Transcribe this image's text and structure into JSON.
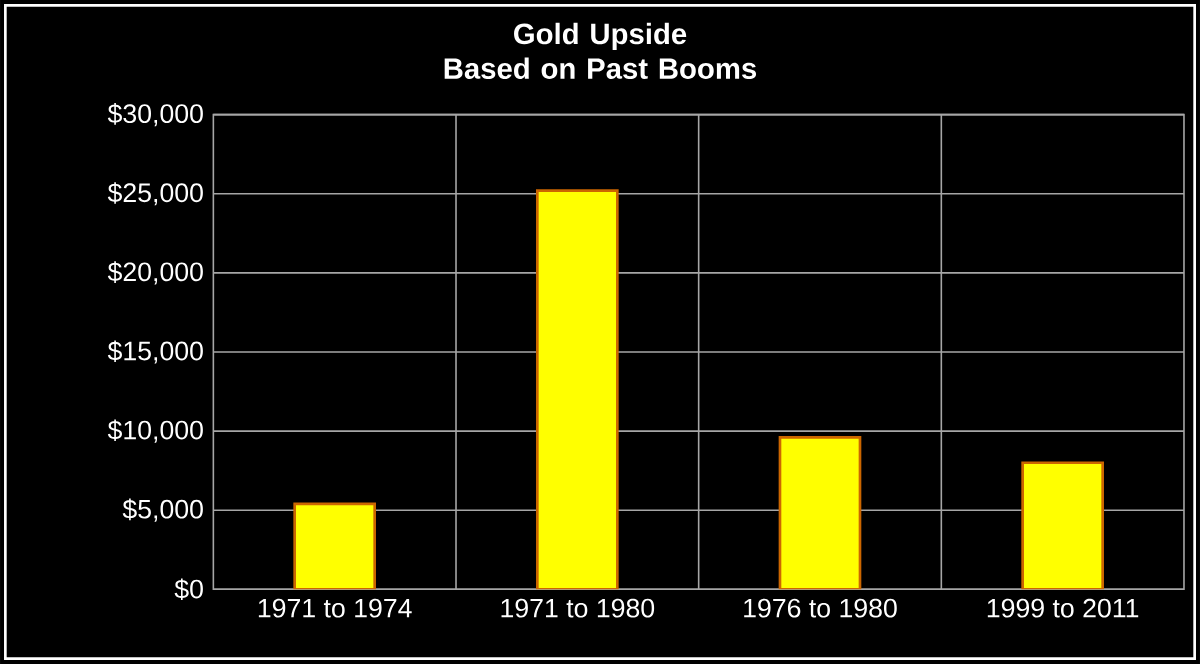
{
  "chart_data": {
    "type": "bar",
    "title": "Gold Upside\nBased on Past Booms",
    "categories": [
      "1971 to 1974",
      "1971 to 1980",
      "1976 to 1980",
      "1999 to 2011"
    ],
    "values": [
      5400,
      25200,
      9600,
      8000
    ],
    "color": "#ffff00",
    "ylim": [
      0,
      30000
    ],
    "yticks": [
      {
        "value": 0,
        "label": "$0"
      },
      {
        "value": 5000,
        "label": "$5,000"
      },
      {
        "value": 10000,
        "label": "$10,000"
      },
      {
        "value": 15000,
        "label": "$15,000"
      },
      {
        "value": 20000,
        "label": "$20,000"
      },
      {
        "value": 25000,
        "label": "$25,000"
      },
      {
        "value": 30000,
        "label": "$30,000"
      }
    ],
    "grid": true
  }
}
